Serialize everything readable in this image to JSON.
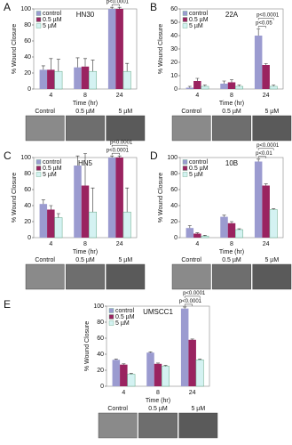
{
  "chart_data": [
    {
      "type": "bar",
      "panel_label": "A",
      "title": "HN30",
      "ylabel": "% Wound Closure",
      "xlabel": "Time (hr)",
      "categories": [
        "4",
        "8",
        "24"
      ],
      "series": [
        {
          "name": "control",
          "color": "#9b9bd0",
          "values": [
            24,
            27,
            100
          ],
          "errors": [
            5,
            12,
            2
          ]
        },
        {
          "name": "0.5 µM",
          "color": "#9a2360",
          "values": [
            24,
            28,
            100
          ],
          "errors": [
            14,
            10,
            2
          ]
        },
        {
          "name": "5 µM",
          "color": "#d4f2f2",
          "values": [
            22,
            22,
            22
          ],
          "errors": [
            15,
            14,
            10
          ]
        }
      ],
      "ylim": [
        0,
        100
      ],
      "yticks": [
        0,
        20,
        40,
        60,
        80,
        100
      ],
      "annotations": [
        "p<0.0001",
        "p<0.0001"
      ],
      "image_labels": [
        "Control",
        "0.5 µM",
        "5 µM"
      ]
    },
    {
      "type": "bar",
      "panel_label": "B",
      "title": "22A",
      "ylabel": "% Wound Closure",
      "xlabel": "Time (hr)",
      "categories": [
        "4",
        "8",
        "24"
      ],
      "series": [
        {
          "name": "control",
          "color": "#9b9bd0",
          "values": [
            1,
            4,
            40
          ],
          "errors": [
            1,
            2,
            5
          ]
        },
        {
          "name": "0.5 µM",
          "color": "#9a2360",
          "values": [
            6,
            5,
            18
          ],
          "errors": [
            2,
            2,
            1
          ]
        },
        {
          "name": "5 µM",
          "color": "#d4f2f2",
          "values": [
            2,
            2,
            2
          ],
          "errors": [
            1,
            1,
            1
          ]
        }
      ],
      "ylim": [
        0,
        60
      ],
      "yticks": [
        0,
        10,
        20,
        30,
        40,
        50,
        60
      ],
      "annotations": [
        "p<0.05",
        "p<0.0001"
      ],
      "image_labels": [
        "Control",
        "0.5 µM",
        "5 µM"
      ]
    },
    {
      "type": "bar",
      "panel_label": "C",
      "title": "HN5",
      "ylabel": "% Wound Closure",
      "xlabel": "Time (hr)",
      "categories": [
        "4",
        "8",
        "24"
      ],
      "series": [
        {
          "name": "control",
          "color": "#9b9bd0",
          "values": [
            42,
            90,
            100
          ],
          "errors": [
            5,
            12,
            2
          ]
        },
        {
          "name": "0.5 µM",
          "color": "#9a2360",
          "values": [
            35,
            65,
            100
          ],
          "errors": [
            5,
            40,
            2
          ]
        },
        {
          "name": "5 µM",
          "color": "#d4f2f2",
          "values": [
            25,
            32,
            32
          ],
          "errors": [
            5,
            30,
            30
          ]
        }
      ],
      "ylim": [
        0,
        100
      ],
      "yticks": [
        0,
        20,
        40,
        60,
        80,
        100
      ],
      "annotations": [
        "p<0.0001",
        "p<0.0001"
      ],
      "image_labels": [
        "Control",
        "0.5 µM",
        "5 µM"
      ]
    },
    {
      "type": "bar",
      "panel_label": "D",
      "title": "10B",
      "ylabel": "% Wound Closure",
      "xlabel": "Time (hr)",
      "categories": [
        "4",
        "8",
        "24"
      ],
      "series": [
        {
          "name": "control",
          "color": "#9b9bd0",
          "values": [
            12,
            26,
            95
          ],
          "errors": [
            3,
            2,
            3
          ]
        },
        {
          "name": "0.5 µM",
          "color": "#9a2360",
          "values": [
            5,
            18,
            65
          ],
          "errors": [
            1,
            2,
            2
          ]
        },
        {
          "name": "5 µM",
          "color": "#d4f2f2",
          "values": [
            2,
            10,
            35
          ],
          "errors": [
            1,
            1,
            1
          ]
        }
      ],
      "ylim": [
        0,
        100
      ],
      "yticks": [
        0,
        20,
        40,
        60,
        80,
        100
      ],
      "annotations": [
        "p<0.01",
        "p<0.0001"
      ],
      "image_labels": [
        "Control",
        "0.5 µM",
        "5 µM"
      ]
    },
    {
      "type": "bar",
      "panel_label": "E",
      "title": "UMSCC1",
      "ylabel": "% Wound Closure",
      "xlabel": "Time (hr)",
      "categories": [
        "4",
        "8",
        "24"
      ],
      "series": [
        {
          "name": "control",
          "color": "#9b9bd0",
          "values": [
            33,
            42,
            97
          ],
          "errors": [
            1,
            1,
            2
          ]
        },
        {
          "name": "0.5 µM",
          "color": "#9a2360",
          "values": [
            27,
            28,
            58
          ],
          "errors": [
            1,
            1,
            1
          ]
        },
        {
          "name": "5 µM",
          "color": "#d4f2f2",
          "values": [
            15,
            25,
            33
          ],
          "errors": [
            1,
            1,
            1
          ]
        }
      ],
      "ylim": [
        0,
        100
      ],
      "yticks": [
        0,
        20,
        40,
        60,
        80,
        100
      ],
      "annotations": [
        "p<0.0001",
        "p<0.0001"
      ],
      "image_labels": [
        "Control",
        "0.5 µM",
        "5 µM"
      ]
    }
  ]
}
